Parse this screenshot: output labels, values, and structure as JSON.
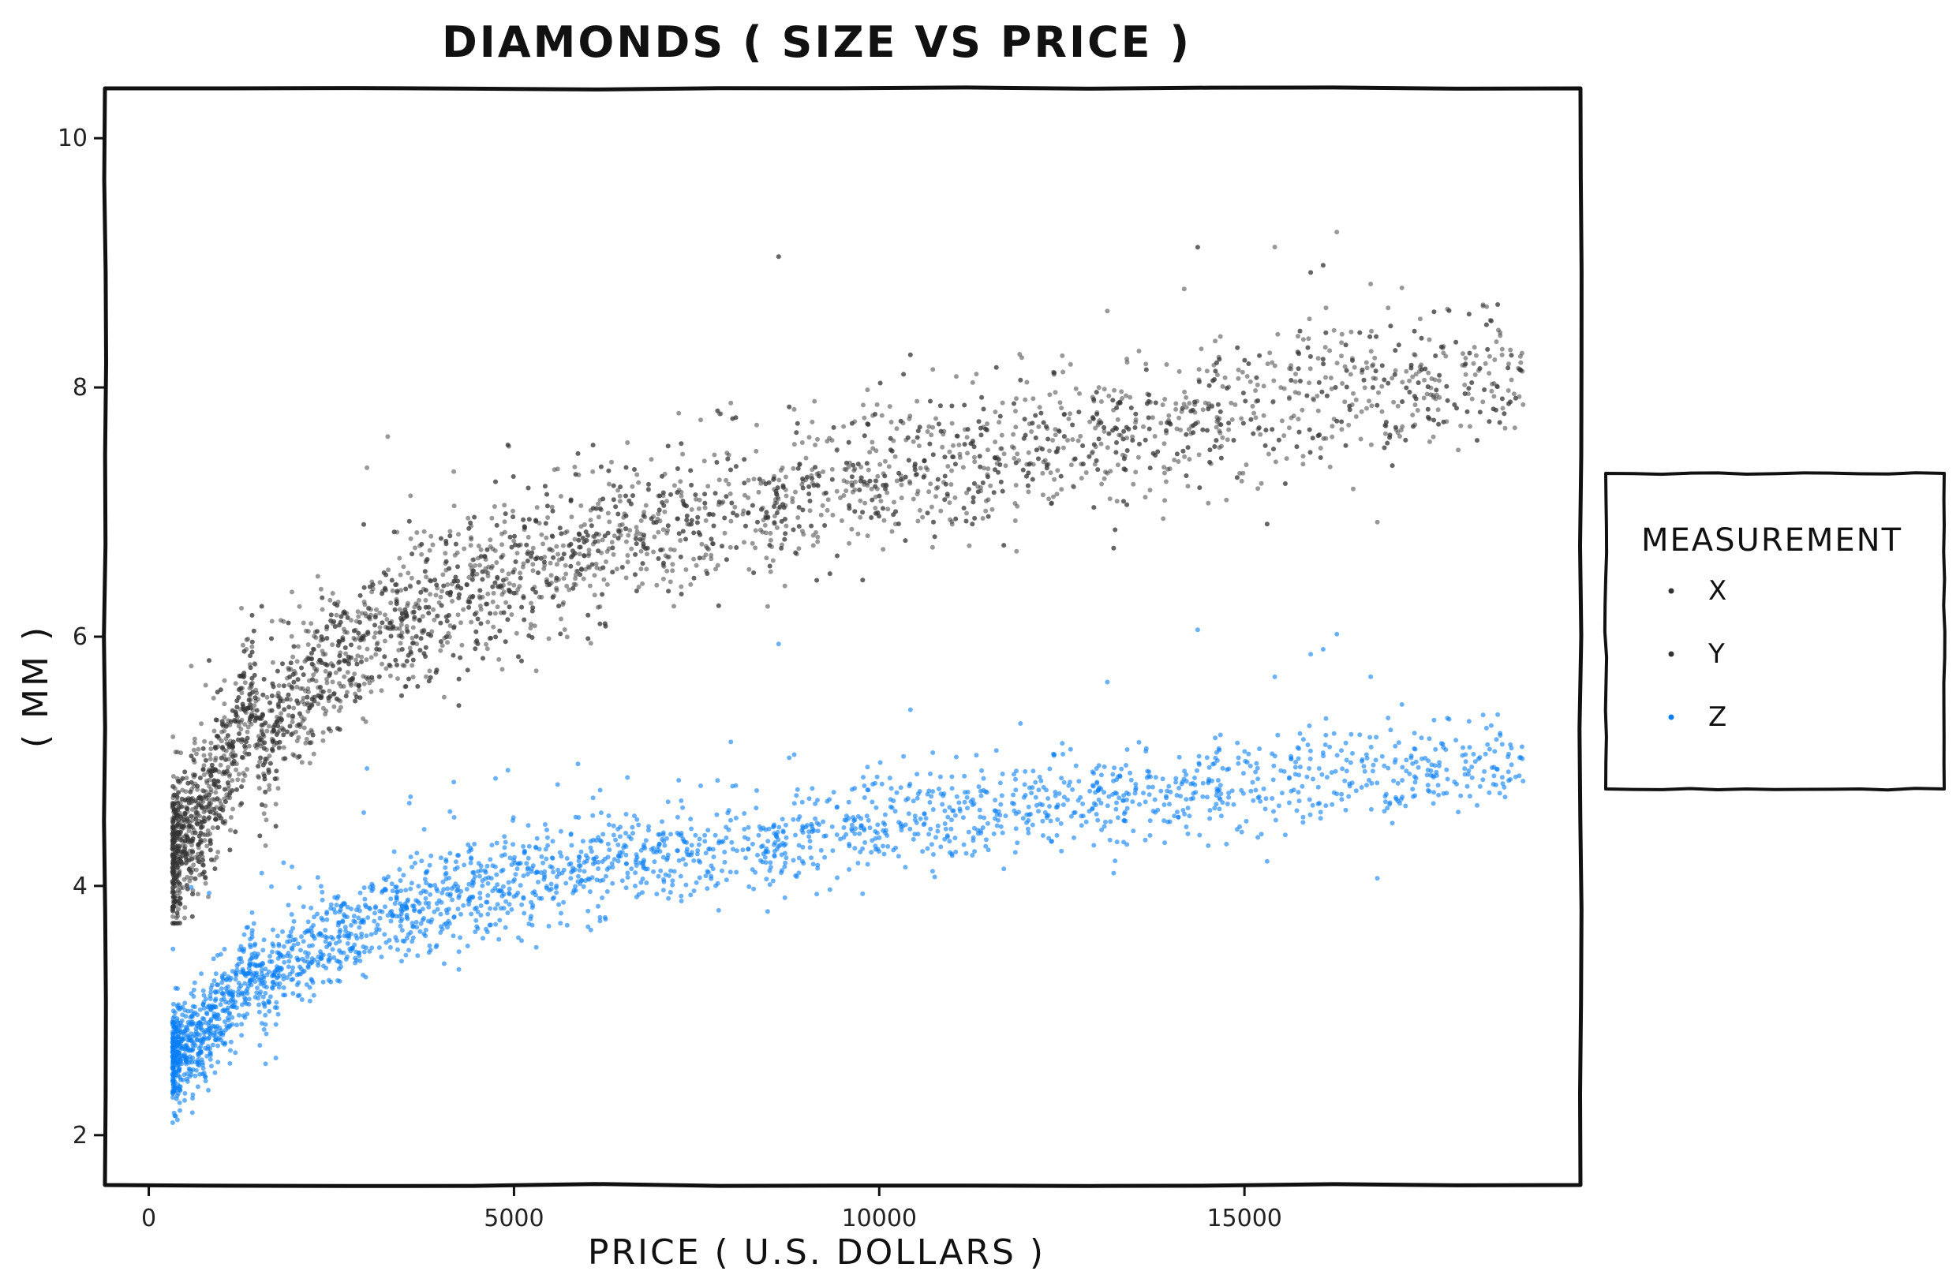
{
  "chart_data": {
    "type": "scatter",
    "title": "DIAMONDS ( SIZE VS PRICE )",
    "xlabel": "PRICE ( U.S. DOLLARS )",
    "ylabel": "( MM )",
    "xlim": [
      -600,
      19600
    ],
    "ylim": [
      1.6,
      10.4
    ],
    "x_ticks": [
      0,
      5000,
      10000,
      15000
    ],
    "x_tick_labels": [
      "0",
      "5000",
      "10000",
      "15000"
    ],
    "y_ticks": [
      2,
      4,
      6,
      8,
      10
    ],
    "y_tick_labels": [
      "2",
      "4",
      "6",
      "8",
      "10"
    ],
    "grid": false,
    "legend": {
      "title": "MEASUREMENT",
      "placement": "right",
      "entries": [
        "X",
        "Y",
        "Z"
      ]
    },
    "colors": {
      "X": "#333333",
      "Y": "#333333",
      "Z": "#0a7ff5"
    },
    "series": [
      {
        "name": "X",
        "color": "#333333",
        "trend_x": [
          326,
          1000,
          1450,
          1500,
          2500,
          4000,
          6000,
          8000,
          10000,
          12000,
          14000,
          16000,
          18800
        ],
        "trend_y": [
          4.2,
          4.9,
          5.6,
          5.1,
          5.8,
          6.3,
          6.7,
          7.0,
          7.3,
          7.5,
          7.7,
          7.9,
          8.1
        ],
        "x_range": [
          326,
          18823
        ],
        "y_range": [
          3.7,
          10.0
        ]
      },
      {
        "name": "Y",
        "color": "#333333",
        "trend_x": [
          326,
          1000,
          1450,
          1500,
          2500,
          4000,
          6000,
          8000,
          10000,
          12000,
          14000,
          16000,
          18800
        ],
        "trend_y": [
          4.2,
          4.9,
          5.6,
          5.1,
          5.8,
          6.3,
          6.7,
          7.0,
          7.3,
          7.5,
          7.7,
          7.9,
          8.1
        ],
        "x_range": [
          326,
          18823
        ],
        "y_range": [
          3.7,
          9.9
        ]
      },
      {
        "name": "Z",
        "color": "#0a7ff5",
        "trend_x": [
          326,
          1000,
          1450,
          1500,
          2500,
          4000,
          6000,
          8000,
          10000,
          12000,
          14000,
          16000,
          18800
        ],
        "trend_y": [
          2.6,
          3.0,
          3.4,
          3.2,
          3.6,
          3.9,
          4.15,
          4.3,
          4.5,
          4.65,
          4.75,
          4.85,
          5.0
        ],
        "x_range": [
          326,
          18823
        ],
        "y_range": [
          2.1,
          6.5
        ]
      }
    ]
  }
}
